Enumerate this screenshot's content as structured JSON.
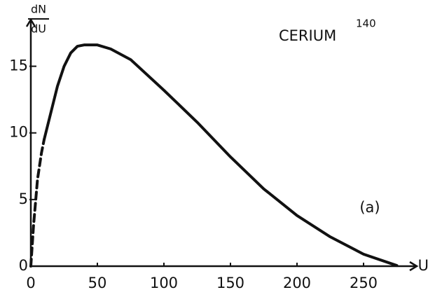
{
  "chart_data": {
    "type": "line",
    "title": "CERIUM",
    "title_superscript": "140",
    "ylabel_numerator": "dN",
    "ylabel_denominator": "dU",
    "xlabel": "U",
    "annotation": "(a)",
    "x": [
      0,
      2,
      5,
      8,
      10,
      15,
      20,
      25,
      30,
      35,
      40,
      50,
      60,
      75,
      100,
      125,
      150,
      175,
      200,
      225,
      250,
      275
    ],
    "series": [
      {
        "color": "#111111",
        "dashed": true,
        "values": [
          0,
          3,
          6.5,
          8.5,
          9.5,
          null,
          null,
          null,
          null,
          null,
          null,
          null,
          null,
          null,
          null,
          null,
          null,
          null,
          null,
          null,
          null,
          null
        ]
      },
      {
        "color": "#111111",
        "dashed": false,
        "values": [
          null,
          null,
          null,
          null,
          9.5,
          11.5,
          13.5,
          15,
          16,
          16.5,
          16.6,
          16.6,
          16.3,
          15.5,
          13.2,
          10.8,
          8.2,
          5.8,
          3.8,
          2.2,
          0.9,
          0.05
        ]
      }
    ],
    "xlim": [
      0,
      290
    ],
    "xticks": [
      0,
      50,
      100,
      150,
      200,
      250
    ],
    "ylim": [
      0,
      18.5
    ],
    "yticks": [
      0,
      5,
      10,
      15
    ],
    "grid": false
  }
}
